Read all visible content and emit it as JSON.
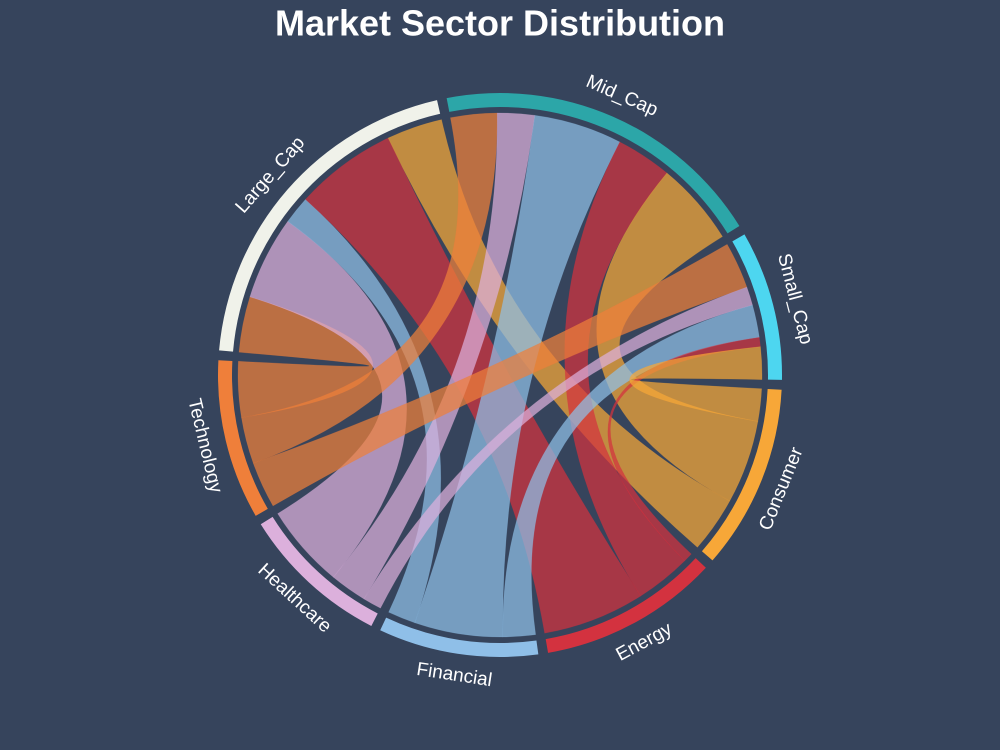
{
  "chart_data": {
    "type": "chord",
    "title": "Market Sector Distribution",
    "nodes": [
      {
        "name": "Large_Cap",
        "color": "#f0f2ea"
      },
      {
        "name": "Mid_Cap",
        "color": "#2ca6a8"
      },
      {
        "name": "Small_Cap",
        "color": "#4dd6f0"
      },
      {
        "name": "Consumer",
        "color": "#f7a738"
      },
      {
        "name": "Energy",
        "color": "#d3323f"
      },
      {
        "name": "Financial",
        "color": "#8fbfe8"
      },
      {
        "name": "Healthcare",
        "color": "#dcb0dc"
      },
      {
        "name": "Technology",
        "color": "#ef7f3a"
      }
    ],
    "links": [
      {
        "source": "Large_Cap",
        "target": "Technology",
        "value": 12
      },
      {
        "source": "Large_Cap",
        "target": "Healthcare",
        "value": 18
      },
      {
        "source": "Large_Cap",
        "target": "Financial",
        "value": 6
      },
      {
        "source": "Large_Cap",
        "target": "Energy",
        "value": 22
      },
      {
        "source": "Large_Cap",
        "target": "Consumer",
        "value": 12
      },
      {
        "source": "Mid_Cap",
        "target": "Technology",
        "value": 10
      },
      {
        "source": "Mid_Cap",
        "target": "Healthcare",
        "value": 8
      },
      {
        "source": "Mid_Cap",
        "target": "Financial",
        "value": 19
      },
      {
        "source": "Mid_Cap",
        "target": "Energy",
        "value": 12
      },
      {
        "source": "Mid_Cap",
        "target": "Consumer",
        "value": 18
      },
      {
        "source": "Small_Cap",
        "target": "Technology",
        "value": 10
      },
      {
        "source": "Small_Cap",
        "target": "Healthcare",
        "value": 4
      },
      {
        "source": "Small_Cap",
        "target": "Financial",
        "value": 7
      },
      {
        "source": "Small_Cap",
        "target": "Energy",
        "value": 2
      },
      {
        "source": "Small_Cap",
        "target": "Consumer",
        "value": 7
      }
    ]
  }
}
